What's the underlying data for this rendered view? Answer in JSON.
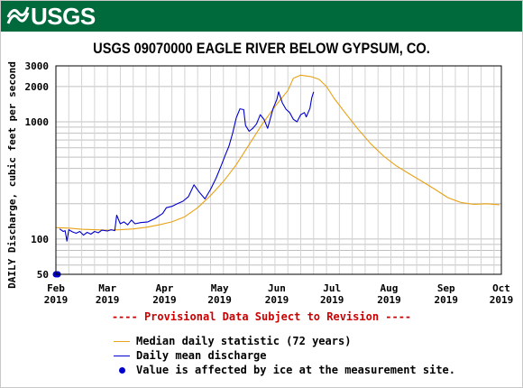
{
  "banner": {
    "logo_text": "USGS",
    "color": "#006a3c"
  },
  "chart_data": {
    "type": "line",
    "title": "USGS 09070000 EAGLE RIVER BELOW GYPSUM, CO.",
    "ylabel": "DAILY Discharge, cubic feet per second",
    "xlabel": "",
    "yscale": "log",
    "ylim": [
      50,
      3000
    ],
    "xlim": [
      "2019-02-01",
      "2019-10-01"
    ],
    "y_ticks": [
      {
        "value": 50,
        "label": "50"
      },
      {
        "value": 100,
        "label": "100"
      },
      {
        "value": 1000,
        "label": "1000"
      },
      {
        "value": 2000,
        "label": "2000"
      },
      {
        "value": 3000,
        "label": "3000"
      }
    ],
    "x_ticks": [
      {
        "date": "2019-02-01",
        "label": [
          "Feb",
          "2019"
        ]
      },
      {
        "date": "2019-03-01",
        "label": [
          "Mar",
          "2019"
        ]
      },
      {
        "date": "2019-04-01",
        "label": [
          "Apr",
          "2019"
        ]
      },
      {
        "date": "2019-05-01",
        "label": [
          "May",
          "2019"
        ]
      },
      {
        "date": "2019-06-01",
        "label": [
          "Jun",
          "2019"
        ]
      },
      {
        "date": "2019-07-01",
        "label": [
          "Jul",
          "2019"
        ]
      },
      {
        "date": "2019-08-01",
        "label": [
          "Aug",
          "2019"
        ]
      },
      {
        "date": "2019-09-01",
        "label": [
          "Sep",
          "2019"
        ]
      },
      {
        "date": "2019-10-01",
        "label": [
          "Oct",
          "2019"
        ]
      }
    ],
    "grid": true,
    "series": [
      {
        "name": "Median daily statistic (72 years)",
        "color": "#e8a317",
        "points": [
          [
            "2019-02-01",
            125
          ],
          [
            "2019-02-08",
            124
          ],
          [
            "2019-02-15",
            121
          ],
          [
            "2019-02-22",
            120
          ],
          [
            "2019-03-01",
            119
          ],
          [
            "2019-03-08",
            120
          ],
          [
            "2019-03-15",
            122
          ],
          [
            "2019-03-22",
            126
          ],
          [
            "2019-03-29",
            132
          ],
          [
            "2019-04-05",
            140
          ],
          [
            "2019-04-12",
            155
          ],
          [
            "2019-04-19",
            185
          ],
          [
            "2019-04-26",
            235
          ],
          [
            "2019-05-03",
            310
          ],
          [
            "2019-05-10",
            430
          ],
          [
            "2019-05-17",
            640
          ],
          [
            "2019-05-24",
            950
          ],
          [
            "2019-05-31",
            1350
          ],
          [
            "2019-06-07",
            1850
          ],
          [
            "2019-06-10",
            2350
          ],
          [
            "2019-06-14",
            2500
          ],
          [
            "2019-06-20",
            2420
          ],
          [
            "2019-06-24",
            2300
          ],
          [
            "2019-06-28",
            2000
          ],
          [
            "2019-07-02",
            1600
          ],
          [
            "2019-07-08",
            1200
          ],
          [
            "2019-07-15",
            870
          ],
          [
            "2019-07-22",
            650
          ],
          [
            "2019-07-29",
            510
          ],
          [
            "2019-08-05",
            420
          ],
          [
            "2019-08-12",
            360
          ],
          [
            "2019-08-19",
            310
          ],
          [
            "2019-08-26",
            265
          ],
          [
            "2019-09-02",
            225
          ],
          [
            "2019-09-09",
            205
          ],
          [
            "2019-09-16",
            198
          ],
          [
            "2019-09-23",
            200
          ],
          [
            "2019-09-30",
            196
          ]
        ]
      },
      {
        "name": "Daily mean discharge",
        "color": "#0000cc",
        "points": [
          [
            "2019-02-03",
            122
          ],
          [
            "2019-02-05",
            116
          ],
          [
            "2019-02-06",
            118
          ],
          [
            "2019-02-07",
            96
          ],
          [
            "2019-02-08",
            120
          ],
          [
            "2019-02-10",
            115
          ],
          [
            "2019-02-12",
            112
          ],
          [
            "2019-02-14",
            116
          ],
          [
            "2019-02-16",
            108
          ],
          [
            "2019-02-18",
            114
          ],
          [
            "2019-02-20",
            110
          ],
          [
            "2019-02-22",
            116
          ],
          [
            "2019-02-24",
            113
          ],
          [
            "2019-02-26",
            119
          ],
          [
            "2019-03-01",
            117
          ],
          [
            "2019-03-03",
            120
          ],
          [
            "2019-03-05",
            118
          ],
          [
            "2019-03-06",
            160
          ],
          [
            "2019-03-08",
            135
          ],
          [
            "2019-03-10",
            140
          ],
          [
            "2019-03-12",
            132
          ],
          [
            "2019-03-14",
            145
          ],
          [
            "2019-03-16",
            135
          ],
          [
            "2019-03-19",
            138
          ],
          [
            "2019-03-23",
            140
          ],
          [
            "2019-03-27",
            150
          ],
          [
            "2019-03-31",
            165
          ],
          [
            "2019-04-02",
            185
          ],
          [
            "2019-04-05",
            190
          ],
          [
            "2019-04-08",
            200
          ],
          [
            "2019-04-11",
            210
          ],
          [
            "2019-04-14",
            230
          ],
          [
            "2019-04-17",
            290
          ],
          [
            "2019-04-20",
            250
          ],
          [
            "2019-04-23",
            220
          ],
          [
            "2019-04-26",
            265
          ],
          [
            "2019-04-29",
            330
          ],
          [
            "2019-05-02",
            430
          ],
          [
            "2019-05-04",
            520
          ],
          [
            "2019-05-06",
            620
          ],
          [
            "2019-05-08",
            800
          ],
          [
            "2019-05-10",
            1080
          ],
          [
            "2019-05-12",
            1290
          ],
          [
            "2019-05-14",
            1270
          ],
          [
            "2019-05-15",
            930
          ],
          [
            "2019-05-17",
            830
          ],
          [
            "2019-05-19",
            880
          ],
          [
            "2019-05-21",
            960
          ],
          [
            "2019-05-23",
            1150
          ],
          [
            "2019-05-25",
            1050
          ],
          [
            "2019-05-27",
            880
          ],
          [
            "2019-05-28",
            1000
          ],
          [
            "2019-05-30",
            1300
          ],
          [
            "2019-06-01",
            1550
          ],
          [
            "2019-06-02",
            1800
          ],
          [
            "2019-06-04",
            1450
          ],
          [
            "2019-06-06",
            1280
          ],
          [
            "2019-06-08",
            1200
          ],
          [
            "2019-06-10",
            1050
          ],
          [
            "2019-06-12",
            1000
          ],
          [
            "2019-06-14",
            1150
          ],
          [
            "2019-06-16",
            1200
          ],
          [
            "2019-06-17",
            1100
          ],
          [
            "2019-06-19",
            1300
          ],
          [
            "2019-06-20",
            1600
          ],
          [
            "2019-06-21",
            1800
          ]
        ]
      }
    ],
    "ice_points": [
      [
        "2019-02-01",
        50
      ],
      [
        "2019-02-02",
        50
      ]
    ],
    "notice": "---- Provisional Data Subject to Revision ----",
    "legend": [
      {
        "label": "Median daily statistic (72 years)",
        "kind": "line",
        "color": "#e8a317"
      },
      {
        "label": "Daily mean discharge",
        "kind": "line",
        "color": "#0000cc"
      },
      {
        "label": "Value is affected by ice at the measurement site.",
        "kind": "dot",
        "color": "#0000cc"
      }
    ]
  }
}
